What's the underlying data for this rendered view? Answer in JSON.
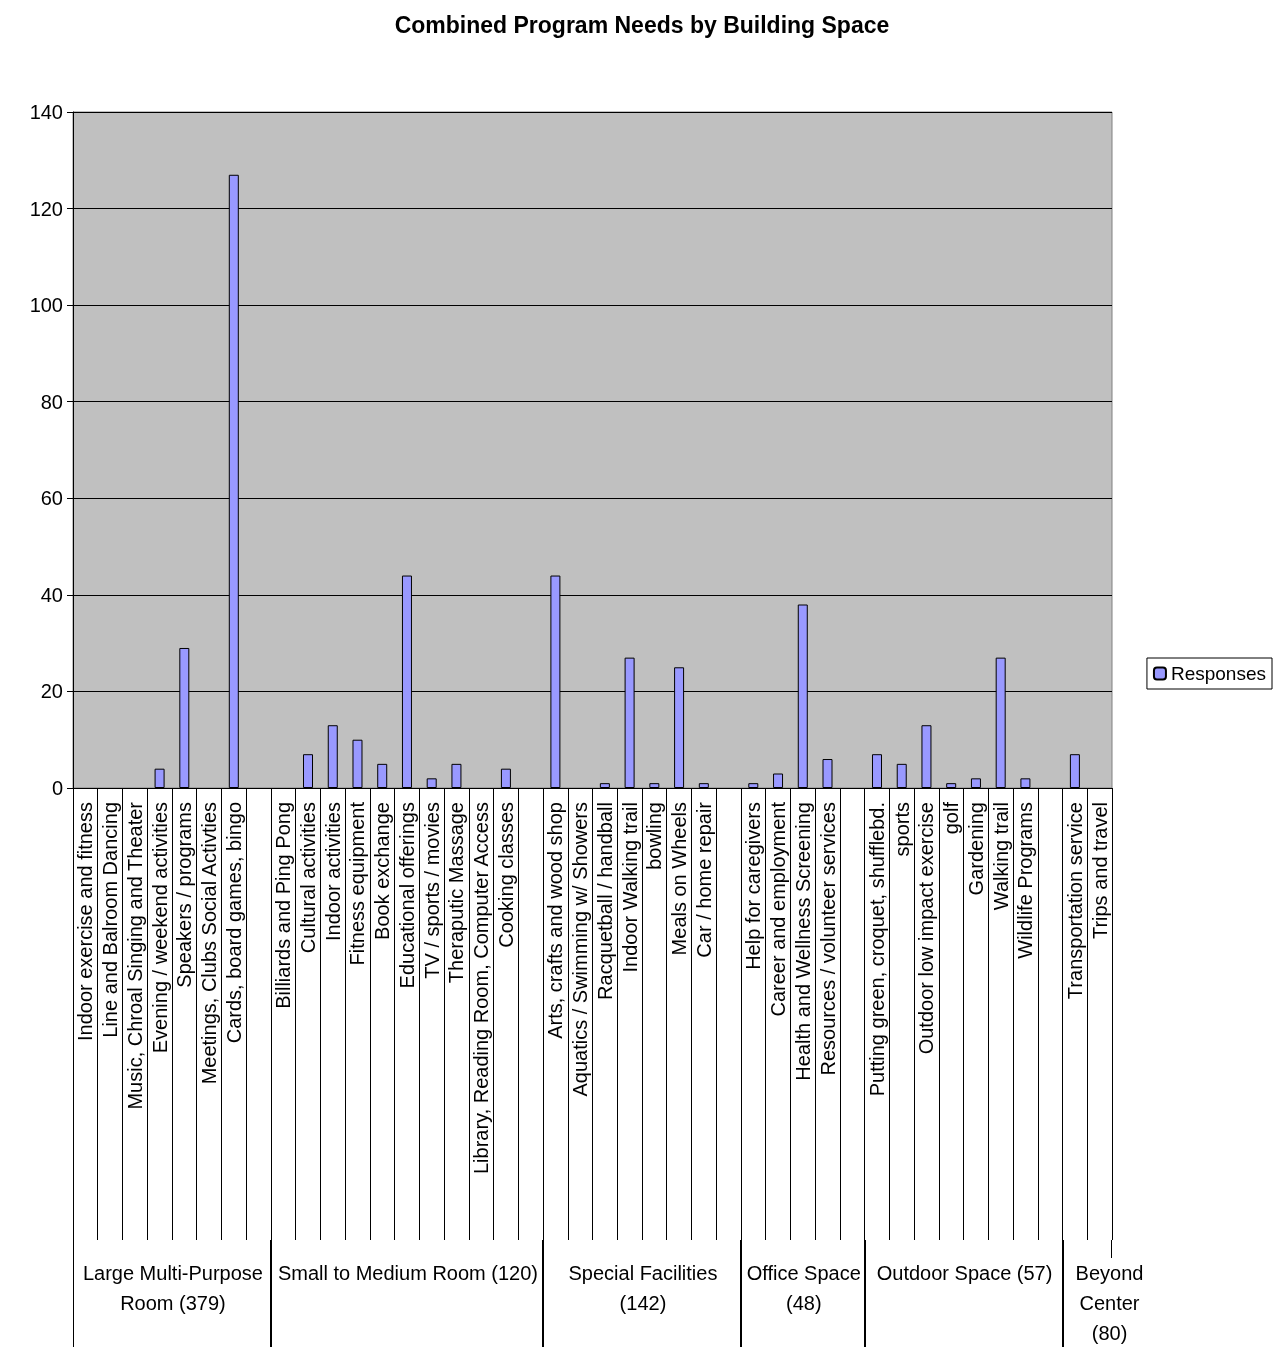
{
  "chart_data": {
    "type": "bar",
    "title": "Combined Program Needs by Building Space",
    "categories": [
      "Indoor exercise and fitness",
      "Line and Balroom Dancing",
      "Music, Chroal Singing and Theater",
      "Evening / weekend activities",
      "Speakers / programs",
      "Meetings, Clubs Social Activties",
      "Cards, board games, bingo",
      null,
      "Billiards and Ping Pong",
      "Cultural activities",
      "Indoor activities",
      "Fitness equipment",
      "Book exchange",
      "Educational offerings",
      "TV / sports / movies",
      "Theraputic Massage",
      "Library, Reading Room, Computer Access",
      "Cooking classes",
      null,
      "Arts, crafts and wood shop",
      "Aquatics / Swimming w/ Showers",
      "Racquetball / handball",
      "Indoor Walking trail",
      "bowling",
      "Meals on Wheels",
      "Car / home repair",
      null,
      "Help for caregivers",
      "Career and employment",
      "Health and Wellness Screening",
      "Resources / volunteer services",
      null,
      "Putting green, croquet, shufflebd.",
      "sports",
      "Outdoor low impact exercise",
      "golf",
      "Gardening",
      "Walking trail",
      "Wildlife Programs",
      null,
      "Transportation service",
      "Trips and travel"
    ],
    "series": [
      {
        "name": "Responses",
        "color": "#9999ff",
        "values": [
          0,
          0,
          0,
          4,
          29,
          0,
          127,
          null,
          0,
          7,
          13,
          10,
          5,
          44,
          2,
          5,
          0,
          4,
          null,
          44,
          0,
          1,
          27,
          1,
          25,
          1,
          null,
          1,
          3,
          38,
          6,
          null,
          7,
          5,
          13,
          1,
          2,
          27,
          2,
          null,
          7,
          0
        ]
      }
    ],
    "ylim": [
      0,
      140
    ],
    "yticks": [
      0,
      20,
      40,
      60,
      80,
      100,
      120,
      140
    ],
    "grid": "y",
    "legend": "right",
    "annotations": [
      "Large Multi-Purpose Room (379)",
      "Small to Medium Room (120)",
      "Special Facilities (142)",
      "Office Space (48)",
      "Outdoor Space (57)",
      "Beyond Center (80)"
    ]
  }
}
